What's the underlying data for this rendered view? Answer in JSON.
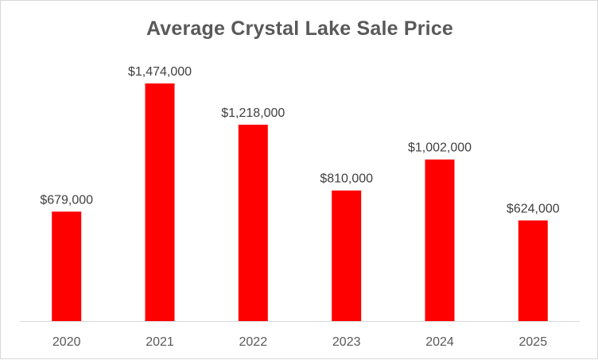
{
  "chart_data": {
    "type": "bar",
    "title": "Average Crystal Lake Sale Price",
    "categories": [
      "2020",
      "2021",
      "2022",
      "2023",
      "2024",
      "2025"
    ],
    "values": [
      679000,
      1474000,
      1218000,
      810000,
      1002000,
      624000
    ],
    "data_labels": [
      "$679,000",
      "$1,474,000",
      "$1,218,000",
      "$810,000",
      "$1,002,000",
      "$624,000"
    ],
    "xlabel": "",
    "ylabel": "",
    "ylim": [
      0,
      1474000
    ],
    "grid": false,
    "legend": "none",
    "bar_color": "#FF0000",
    "axis_color": "#d9d9d9"
  }
}
